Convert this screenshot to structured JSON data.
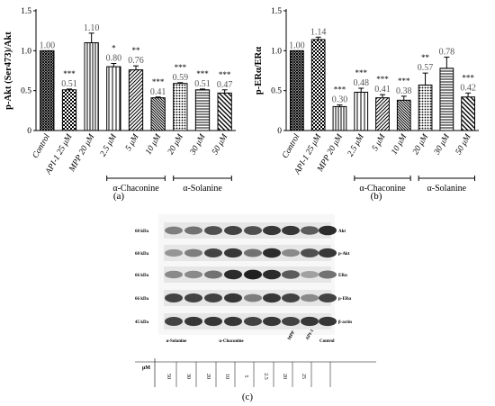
{
  "chart_data": [
    {
      "type": "bar",
      "panel_label": "(a)",
      "ylabel": "p-Akt (Ser473)/Akt",
      "ylim": [
        0,
        1.5
      ],
      "yticks": [
        "0",
        "0.5",
        "1.0",
        "1.5"
      ],
      "categories": [
        "Control",
        "API-1 25 μM",
        "MPP 20 μM",
        "2.5 μM",
        "5 μM",
        "10 μM",
        "20 μM",
        "30 μM",
        "50 μM"
      ],
      "values": [
        1.0,
        0.51,
        1.1,
        0.8,
        0.76,
        0.41,
        0.59,
        0.51,
        0.47
      ],
      "value_labels": [
        "1.00",
        "0.51",
        "1.10",
        "0.80",
        "0.76",
        "0.41",
        "0.59",
        "0.51",
        "0.47"
      ],
      "errors": [
        0.0,
        0.01,
        0.12,
        0.04,
        0.05,
        0.01,
        0.01,
        0.01,
        0.04
      ],
      "significance": [
        "",
        "***",
        "",
        "*",
        "**",
        "***",
        "***",
        "***",
        "***"
      ],
      "patterns": [
        "crosshatch",
        "checker",
        "vstripe",
        "vstripe-wide",
        "diag-right",
        "diag-left-dense",
        "dots",
        "hstripe",
        "diag-left"
      ],
      "groups": [
        {
          "label": "α-Chaconine",
          "from": 3,
          "to": 5
        },
        {
          "label": "α-Solanine",
          "from": 6,
          "to": 8
        }
      ]
    },
    {
      "type": "bar",
      "panel_label": "(b)",
      "ylabel": "p-ERα/ERα",
      "ylim": [
        0,
        1.5
      ],
      "yticks": [
        "0",
        "0.5",
        "1.0",
        "1.5"
      ],
      "categories": [
        "Control",
        "API-1 25 μM",
        "MPP 20 μM",
        "2.5 μM",
        "5 μM",
        "10 μM",
        "20 μM",
        "30 μM",
        "50 μM"
      ],
      "values": [
        1.0,
        1.14,
        0.3,
        0.48,
        0.41,
        0.38,
        0.57,
        0.78,
        0.42
      ],
      "value_labels": [
        "1.00",
        "1.14",
        "0.30",
        "0.48",
        "0.41",
        "0.38",
        "0.57",
        "0.78",
        "0.42"
      ],
      "errors": [
        0.0,
        0.03,
        0.02,
        0.05,
        0.04,
        0.05,
        0.15,
        0.14,
        0.05
      ],
      "significance": [
        "",
        "",
        "***",
        "***",
        "***",
        "***",
        "**",
        "",
        "***"
      ],
      "patterns": [
        "crosshatch",
        "checker",
        "vstripe",
        "vstripe-wide",
        "diag-right",
        "diag-left-dense",
        "dots",
        "hstripe",
        "diag-left"
      ],
      "groups": [
        {
          "label": "α-Chaconine",
          "from": 3,
          "to": 5
        },
        {
          "label": "α-Solanine",
          "from": 6,
          "to": 8
        }
      ]
    }
  ],
  "blot": {
    "panel_label": "(c)",
    "rows": [
      {
        "mw": "60 kDa",
        "protein": "Akt"
      },
      {
        "mw": "60 kDa",
        "protein": "p-Akt"
      },
      {
        "mw": "66 kDa",
        "protein": "ERα"
      },
      {
        "mw": "66 kDa",
        "protein": "p-ERα"
      },
      {
        "mw": "45 kDa",
        "protein": "β-actin"
      }
    ],
    "group_labels": [
      "α-Solanine",
      "α-Chaconine",
      "MPP",
      "API-1",
      "Control"
    ],
    "unit_label": "μM",
    "lane_values": [
      "50",
      "30",
      "20",
      "10",
      "5",
      "2.5",
      "20",
      "25",
      ""
    ]
  }
}
